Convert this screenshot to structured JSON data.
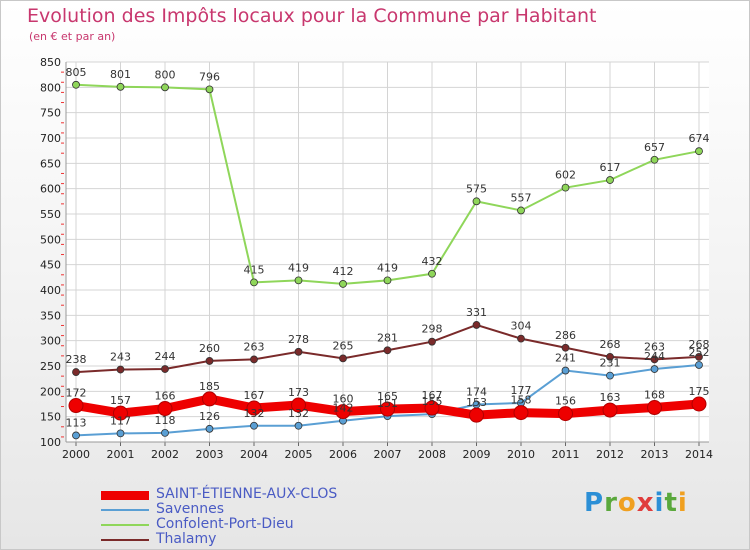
{
  "title": "Evolution des Impôts locaux pour la Commune par Habitant",
  "subtitle": "(en € et par an)",
  "logo": {
    "letters": [
      "P",
      "r",
      "o",
      "x",
      "i",
      "t",
      "i"
    ],
    "colors": [
      "#2c8fd6",
      "#5aa83c",
      "#f0a020",
      "#e03c3c",
      "#2c8fd6",
      "#5aa83c",
      "#f0a020"
    ]
  },
  "chart_data": {
    "type": "line",
    "x": [
      "2000",
      "2001",
      "2002",
      "2003",
      "2004",
      "2005",
      "2006",
      "2007",
      "2008",
      "2009",
      "2010",
      "2011",
      "2012",
      "2013",
      "2014"
    ],
    "ylim": [
      100,
      850
    ],
    "yticks": [
      "100",
      "150",
      "200",
      "250",
      "300",
      "350",
      "400",
      "450",
      "500",
      "550",
      "600",
      "650",
      "700",
      "750",
      "800",
      "850"
    ],
    "grid": true,
    "legend_position": "bottom-left",
    "series": [
      {
        "name": "SAINT-ÉTIENNE-AUX-CLOS",
        "color": "#ee0000",
        "values": [
          172,
          157,
          166,
          185,
          167,
          173,
          160,
          165,
          167,
          153,
          158,
          156,
          163,
          168,
          175
        ],
        "labels": [
          "172",
          "157",
          "166",
          "185",
          "167",
          "173",
          "160",
          "165",
          "167",
          "153",
          "158",
          "156",
          "163",
          "168",
          "175"
        ]
      },
      {
        "name": "Savennes",
        "color": "#5a9fd4",
        "values": [
          113,
          117,
          118,
          126,
          132,
          132,
          142,
          151,
          155,
          174,
          177,
          241,
          231,
          244,
          252
        ],
        "labels": [
          "113",
          "117",
          "118",
          "126",
          "132",
          "132",
          "142",
          "151",
          "155",
          "174",
          "177",
          "241",
          "231",
          "244",
          "252"
        ]
      },
      {
        "name": "Confolent-Port-Dieu",
        "color": "#8fd65a",
        "values": [
          805,
          801,
          800,
          796,
          415,
          419,
          412,
          419,
          432,
          575,
          557,
          602,
          617,
          657,
          674
        ],
        "labels": [
          "805",
          "801",
          "800",
          "796",
          "415",
          "419",
          "412",
          "419",
          "432",
          "575",
          "557",
          "602",
          "617",
          "657",
          "674"
        ]
      },
      {
        "name": "Thalamy",
        "color": "#7a2a2a",
        "values": [
          238,
          243,
          244,
          260,
          263,
          278,
          265,
          281,
          298,
          331,
          304,
          286,
          268,
          263,
          268
        ],
        "labels": [
          "238",
          "243",
          "244",
          "260",
          "263",
          "278",
          "265",
          "281",
          "298",
          "331",
          "304",
          "286",
          "268",
          "263",
          "268"
        ]
      }
    ]
  }
}
